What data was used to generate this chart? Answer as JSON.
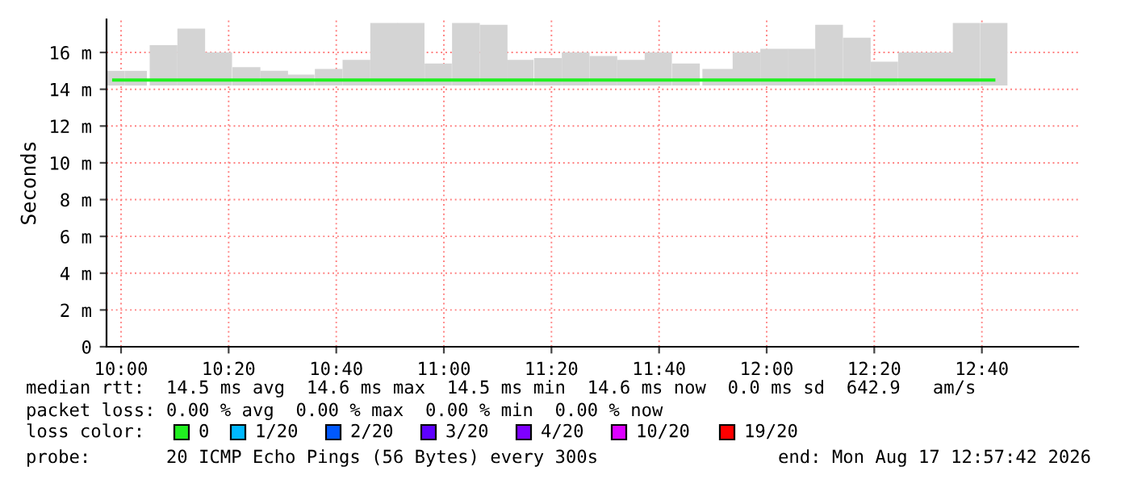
{
  "chart_data": {
    "type": "bar",
    "ylabel": "Seconds",
    "x": [
      9.9775,
      10.0458,
      10.1317,
      10.2175,
      10.3017,
      10.3883,
      10.4742,
      10.5575,
      10.6433,
      10.7292,
      10.815,
      10.8983,
      10.9825,
      11.0683,
      11.1542,
      11.2367,
      11.3225,
      11.4083,
      11.4942,
      11.58,
      11.6642,
      11.75,
      11.8517,
      11.9375,
      12.0233,
      12.1075,
      12.1933,
      12.2792,
      12.3642,
      12.45,
      12.535,
      12.6183,
      12.7033
    ],
    "base": [
      14.2,
      14.2,
      14.2,
      14.2,
      14.2,
      14.2,
      14.2,
      14.2,
      14.2,
      14.2,
      14.2,
      14.2,
      14.2,
      14.2,
      14.2,
      14.2,
      14.2,
      14.2,
      14.2,
      14.2,
      14.2,
      14.2,
      14.2,
      14.2,
      14.2,
      14.2,
      14.2,
      14.2,
      14.2,
      14.2,
      14.2,
      14.2,
      14.2
    ],
    "values": [
      0.8,
      0.8,
      2.2,
      3.1,
      1.8,
      1.0,
      0.8,
      0.6,
      0.9,
      1.4,
      3.4,
      3.4,
      1.2,
      3.4,
      3.3,
      1.4,
      1.5,
      1.8,
      1.6,
      1.4,
      1.8,
      1.2,
      0.9,
      1.8,
      2.0,
      2.0,
      3.3,
      2.6,
      1.3,
      1.8,
      1.8,
      3.4,
      3.4
    ],
    "color": "#d4d4d4",
    "series": [
      {
        "name": "0",
        "type": "step",
        "color": "#20f020",
        "values": [
          14.5,
          14.5,
          14.5,
          14.5,
          14.5,
          14.5,
          14.5,
          14.5,
          14.5,
          14.5,
          14.5,
          14.5,
          14.5,
          14.5,
          14.5,
          14.5,
          14.5,
          14.5,
          14.5,
          14.5,
          14.5,
          14.5,
          14.5,
          14.5,
          14.5,
          14.5,
          14.5,
          14.5,
          14.5,
          14.5,
          14.5,
          14.5,
          14.5
        ]
      },
      {
        "name": "1/20",
        "type": "step",
        "color": "#00b8ff",
        "values": [
          null,
          null,
          null,
          null,
          null,
          null,
          null,
          null,
          null,
          null,
          null,
          null,
          null,
          null,
          null,
          null,
          null,
          null,
          null,
          null,
          null,
          null,
          null,
          null,
          null,
          null,
          null,
          null,
          null,
          null,
          null,
          null,
          null
        ]
      },
      {
        "name": "2/20",
        "type": "step",
        "color": "#0059ff",
        "values": [
          null,
          null,
          null,
          null,
          null,
          null,
          null,
          null,
          null,
          null,
          null,
          null,
          null,
          null,
          null,
          null,
          null,
          null,
          null,
          null,
          null,
          null,
          null,
          null,
          null,
          null,
          null,
          null,
          null,
          null,
          null,
          null,
          null
        ]
      },
      {
        "name": "3/20",
        "type": "step",
        "color": "#5e00ff",
        "values": [
          null,
          null,
          null,
          null,
          null,
          null,
          null,
          null,
          null,
          null,
          null,
          null,
          null,
          null,
          null,
          null,
          null,
          null,
          null,
          null,
          null,
          null,
          null,
          null,
          null,
          null,
          null,
          null,
          null,
          null,
          null,
          null,
          null
        ]
      },
      {
        "name": "4/20",
        "type": "step",
        "color": "#7e00ff",
        "values": [
          null,
          null,
          null,
          null,
          null,
          null,
          null,
          null,
          null,
          null,
          null,
          null,
          null,
          null,
          null,
          null,
          null,
          null,
          null,
          null,
          null,
          null,
          null,
          null,
          null,
          null,
          null,
          null,
          null,
          null,
          null,
          null,
          null
        ]
      },
      {
        "name": "10/20",
        "type": "step",
        "color": "#dd00ff",
        "values": [
          null,
          null,
          null,
          null,
          null,
          null,
          null,
          null,
          null,
          null,
          null,
          null,
          null,
          null,
          null,
          null,
          null,
          null,
          null,
          null,
          null,
          null,
          null,
          null,
          null,
          null,
          null,
          null,
          null,
          null,
          null,
          null,
          null
        ]
      },
      {
        "name": "19/20",
        "type": "step",
        "color": "#ff0000",
        "values": [
          null,
          null,
          null,
          null,
          null,
          null,
          null,
          null,
          null,
          null,
          null,
          null,
          null,
          null,
          null,
          null,
          null,
          null,
          null,
          null,
          null,
          null,
          null,
          null,
          null,
          null,
          null,
          null,
          null,
          null,
          null,
          null,
          null
        ]
      }
    ],
    "legend": "bottom",
    "legend_title": "loss color:",
    "xlim": [
      9.955,
      12.965
    ],
    "xticks": [
      {
        "value": 10.0,
        "label": "10:00"
      },
      {
        "value": 10.3333,
        "label": "10:20"
      },
      {
        "value": 10.6667,
        "label": "10:40"
      },
      {
        "value": 11.0,
        "label": "11:00"
      },
      {
        "value": 11.3333,
        "label": "11:20"
      },
      {
        "value": 11.6667,
        "label": "11:40"
      },
      {
        "value": 12.0,
        "label": "12:00"
      },
      {
        "value": 12.3333,
        "label": "12:20"
      },
      {
        "value": 12.6667,
        "label": "12:40"
      }
    ],
    "ylim": [
      0,
      17.8
    ],
    "yticks": [
      {
        "value": 0,
        "label": "0"
      },
      {
        "value": 2,
        "label": "2 m"
      },
      {
        "value": 4,
        "label": "4 m"
      },
      {
        "value": 6,
        "label": "6 m"
      },
      {
        "value": 8,
        "label": "8 m"
      },
      {
        "value": 10,
        "label": "10 m"
      },
      {
        "value": 12,
        "label": "12 m"
      },
      {
        "value": 14,
        "label": "14 m"
      },
      {
        "value": 16,
        "label": "16 m"
      }
    ],
    "grid": true,
    "annotations": [
      "median rtt:  14.5 ms avg  14.6 ms max  14.5 ms min  14.6 ms now  0.0 ms sd  642.9   am/s",
      "packet loss: 0.00 % avg  0.00 % max  0.00 % min  0.00 % now",
      "probe:       20 ICMP Echo Pings (56 Bytes) every 300s",
      "end: Mon Aug 17 12:57:42 2026"
    ]
  }
}
